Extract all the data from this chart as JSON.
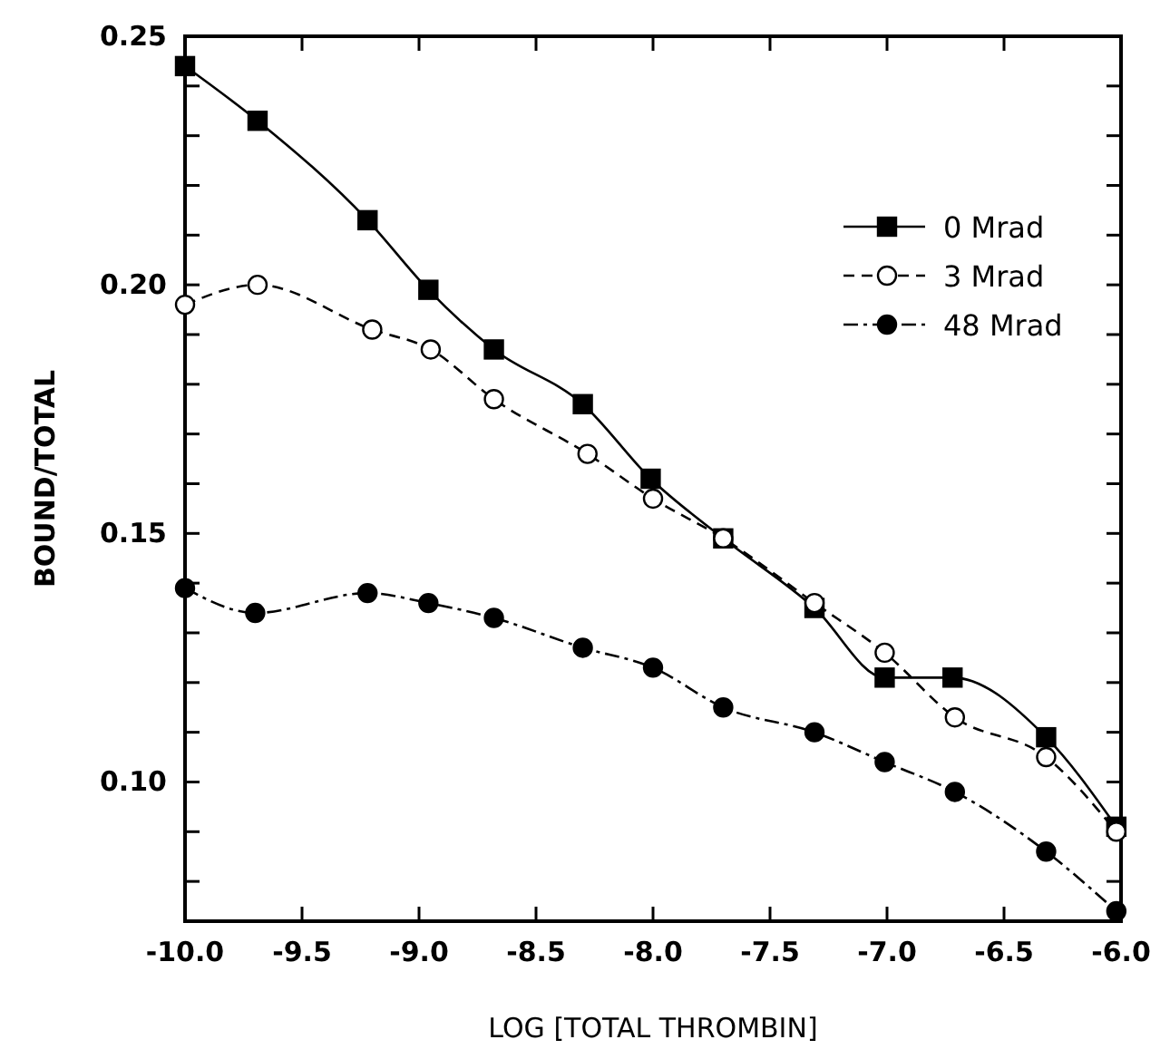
{
  "chart_data": {
    "type": "line",
    "xlabel": "LOG [TOTAL THROMBIN]",
    "ylabel": "BOUND/TOTAL",
    "xlim": [
      -10,
      -6
    ],
    "ylim": [
      0.072,
      0.25
    ],
    "xticks": [
      {
        "value": -10,
        "label": "-10.0"
      },
      {
        "value": -9.5,
        "label": "-9.5"
      },
      {
        "value": -9,
        "label": "-9.0"
      },
      {
        "value": -8.5,
        "label": "-8.5"
      },
      {
        "value": -8,
        "label": "-8.0"
      },
      {
        "value": -7.5,
        "label": "-7.5"
      },
      {
        "value": -7,
        "label": "-7.0"
      },
      {
        "value": -6.5,
        "label": "-6.5"
      },
      {
        "value": -6,
        "label": "-6.0"
      }
    ],
    "yticks": [
      {
        "value": 0.08,
        "label": null
      },
      {
        "value": 0.09,
        "label": null
      },
      {
        "value": 0.1,
        "label": "0.10"
      },
      {
        "value": 0.11,
        "label": null
      },
      {
        "value": 0.12,
        "label": null
      },
      {
        "value": 0.13,
        "label": null
      },
      {
        "value": 0.14,
        "label": null
      },
      {
        "value": 0.15,
        "label": "0.15"
      },
      {
        "value": 0.16,
        "label": null
      },
      {
        "value": 0.17,
        "label": null
      },
      {
        "value": 0.18,
        "label": null
      },
      {
        "value": 0.19,
        "label": null
      },
      {
        "value": 0.2,
        "label": "0.20"
      },
      {
        "value": 0.21,
        "label": null
      },
      {
        "value": 0.22,
        "label": null
      },
      {
        "value": 0.23,
        "label": null
      },
      {
        "value": 0.24,
        "label": null
      },
      {
        "value": 0.25,
        "label": "0.25"
      }
    ],
    "grid": false,
    "legend": "top right",
    "series": [
      {
        "name": "0 Mrad",
        "color": "#000000",
        "marker": "square",
        "line_style": "solid",
        "x": [
          -10,
          -9.69,
          -9.22,
          -8.96,
          -8.68,
          -8.3,
          -8.01,
          -7.7,
          -7.31,
          -7.01,
          -6.72,
          -6.32,
          -6.02
        ],
        "values": [
          0.244,
          0.233,
          0.213,
          0.199,
          0.187,
          0.176,
          0.161,
          0.149,
          0.135,
          0.121,
          0.121,
          0.109,
          0.091
        ]
      },
      {
        "name": "3 Mrad",
        "color": "#000000",
        "marker": "circle",
        "colors": [
          "#ffffff",
          "#ffffff",
          "#ffffff",
          "#ffffff",
          "#ffffff",
          "#ffffff",
          "#ffffff",
          "#ffffff",
          "#ffffff",
          "#ffffff",
          "#ffffff",
          "#ffffff",
          "#ffffff"
        ],
        "line_style": "dashed",
        "x": [
          -10,
          -9.69,
          -9.2,
          -8.95,
          -8.68,
          -8.28,
          -8.0,
          -7.7,
          -7.31,
          -7.01,
          -6.71,
          -6.32,
          -6.02
        ],
        "values": [
          0.196,
          0.2,
          0.191,
          0.187,
          0.177,
          0.166,
          0.157,
          0.149,
          0.136,
          0.126,
          0.113,
          0.105,
          0.09
        ]
      },
      {
        "name": "48 Mrad",
        "color": "#000000",
        "marker": "circle",
        "line_style": "dashdot",
        "x": [
          -10,
          -9.7,
          -9.22,
          -8.96,
          -8.68,
          -8.3,
          -8.0,
          -7.7,
          -7.31,
          -7.01,
          -6.71,
          -6.32,
          -6.02
        ],
        "values": [
          0.139,
          0.134,
          0.138,
          0.136,
          0.133,
          0.127,
          0.123,
          0.115,
          0.11,
          0.104,
          0.098,
          0.086,
          0.074
        ]
      }
    ]
  }
}
